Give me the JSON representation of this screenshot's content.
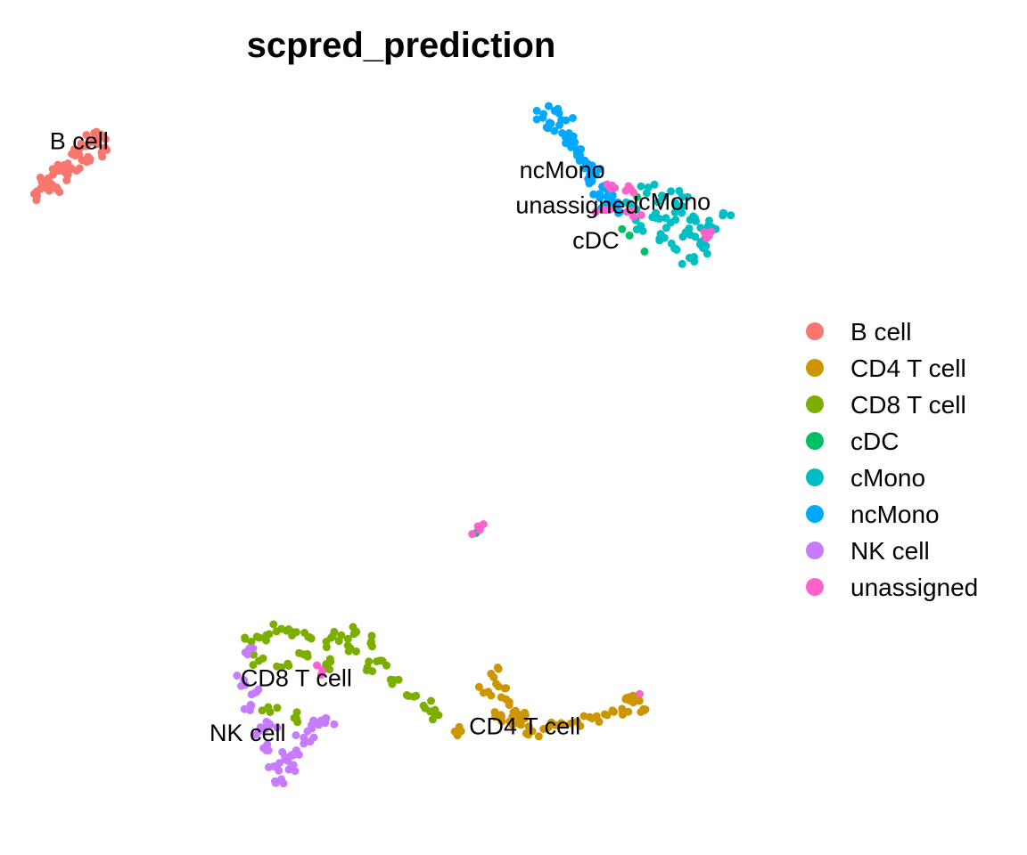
{
  "chart_data": {
    "type": "scatter",
    "title": "scpred_prediction",
    "axes_visible": false,
    "grid": false,
    "legend_position": "right",
    "categories": [
      {
        "name": "B cell",
        "color": "#F8766D"
      },
      {
        "name": "CD4 T cell",
        "color": "#CD9600"
      },
      {
        "name": "CD8 T cell",
        "color": "#7CAE00"
      },
      {
        "name": "cDC",
        "color": "#00BE67"
      },
      {
        "name": "cMono",
        "color": "#00BFC4"
      },
      {
        "name": "ncMono",
        "color": "#00A9FF"
      },
      {
        "name": "NK cell",
        "color": "#C77CFF"
      },
      {
        "name": "unassigned",
        "color": "#FF61CC"
      }
    ],
    "cluster_labels": [
      {
        "text": "B cell",
        "x": -8.6,
        "y": 10.4
      },
      {
        "text": "ncMono",
        "x": 4.3,
        "y": 9.5
      },
      {
        "text": "unassigned",
        "x": 4.7,
        "y": 8.4
      },
      {
        "text": "cMono",
        "x": 7.3,
        "y": 8.5
      },
      {
        "text": "cDC",
        "x": 5.2,
        "y": 7.3
      },
      {
        "text": "CD8 T cell",
        "x": -2.8,
        "y": -6.4
      },
      {
        "text": "NK cell",
        "x": -4.1,
        "y": -8.1
      },
      {
        "text": "CD4 T cell",
        "x": 3.3,
        "y": -7.9
      }
    ],
    "xlim": [
      -10,
      10
    ],
    "ylim": [
      -10,
      12
    ],
    "series": [
      {
        "name": "B cell",
        "points": [
          [
            -9.8,
            9.0
          ],
          [
            -9.5,
            9.3
          ],
          [
            -9.3,
            9.6
          ],
          [
            -9.0,
            9.9
          ],
          [
            -8.7,
            10.2
          ],
          [
            -8.4,
            10.5
          ],
          [
            -8.1,
            10.7
          ],
          [
            -8.0,
            10.3
          ],
          [
            -8.4,
            10.0
          ],
          [
            -8.9,
            9.6
          ],
          [
            -9.4,
            9.1
          ],
          [
            -9.6,
            9.4
          ],
          [
            -9.1,
            9.8
          ],
          [
            -8.6,
            10.4
          ],
          [
            -8.2,
            10.9
          ],
          [
            -8.8,
            9.8
          ],
          [
            -9.2,
            9.2
          ]
        ]
      },
      {
        "name": "ncMono",
        "points": [
          [
            3.8,
            11.5
          ],
          [
            4.0,
            11.2
          ],
          [
            4.3,
            10.9
          ],
          [
            4.5,
            10.6
          ],
          [
            4.7,
            10.2
          ],
          [
            4.9,
            9.8
          ],
          [
            5.1,
            9.4
          ],
          [
            5.3,
            9.0
          ],
          [
            5.5,
            8.7
          ],
          [
            5.8,
            8.4
          ],
          [
            4.1,
            11.6
          ],
          [
            4.4,
            11.3
          ],
          [
            4.6,
            10.8
          ],
          [
            4.8,
            10.4
          ],
          [
            5.0,
            9.9
          ],
          [
            5.2,
            9.6
          ],
          [
            5.4,
            9.2
          ],
          [
            5.6,
            8.9
          ]
        ]
      },
      {
        "name": "cMono",
        "points": [
          [
            6.6,
            9.2
          ],
          [
            7.0,
            8.9
          ],
          [
            7.4,
            8.6
          ],
          [
            7.8,
            8.3
          ],
          [
            8.2,
            8.0
          ],
          [
            6.8,
            8.4
          ],
          [
            7.2,
            8.1
          ],
          [
            7.6,
            7.8
          ],
          [
            8.0,
            7.5
          ],
          [
            8.4,
            7.9
          ],
          [
            6.4,
            8.0
          ],
          [
            6.9,
            7.6
          ],
          [
            7.3,
            7.3
          ],
          [
            7.7,
            7.0
          ],
          [
            8.1,
            7.3
          ],
          [
            8.6,
            8.4
          ],
          [
            6.2,
            8.6
          ],
          [
            7.5,
            8.9
          ]
        ]
      },
      {
        "name": "cDC",
        "points": [
          [
            5.9,
            7.9
          ],
          [
            6.1,
            7.7
          ],
          [
            6.3,
            8.9
          ],
          [
            6.5,
            7.2
          ],
          [
            2.0,
            -1.6
          ]
        ]
      },
      {
        "name": "unassigned",
        "points": [
          [
            5.5,
            9.3
          ],
          [
            6.0,
            9.1
          ],
          [
            5.4,
            8.5
          ],
          [
            6.2,
            8.3
          ],
          [
            8.1,
            7.8
          ],
          [
            2.1,
            -1.5
          ],
          [
            -2.1,
            -5.9
          ],
          [
            6.3,
            -6.8
          ]
        ]
      },
      {
        "name": "CD8 T cell",
        "points": [
          [
            -4.0,
            -5.0
          ],
          [
            -3.6,
            -4.8
          ],
          [
            -3.2,
            -4.6
          ],
          [
            -2.8,
            -4.7
          ],
          [
            -2.4,
            -4.9
          ],
          [
            -2.0,
            -5.0
          ],
          [
            -1.6,
            -4.8
          ],
          [
            -1.2,
            -4.7
          ],
          [
            -0.8,
            -5.0
          ],
          [
            -0.5,
            -5.6
          ],
          [
            -0.2,
            -6.2
          ],
          [
            0.2,
            -6.7
          ],
          [
            0.6,
            -7.0
          ],
          [
            1.0,
            -7.3
          ],
          [
            -3.8,
            -5.6
          ],
          [
            -3.2,
            -5.8
          ],
          [
            -2.6,
            -5.4
          ],
          [
            -2.0,
            -5.7
          ],
          [
            -1.4,
            -5.3
          ],
          [
            -0.9,
            -5.8
          ],
          [
            -3.5,
            -7.2
          ],
          [
            -2.8,
            -7.4
          ]
        ]
      },
      {
        "name": "NK cell",
        "points": [
          [
            -4.1,
            -5.4
          ],
          [
            -4.2,
            -6.2
          ],
          [
            -4.0,
            -7.0
          ],
          [
            -3.8,
            -7.8
          ],
          [
            -3.6,
            -8.4
          ],
          [
            -3.4,
            -8.9
          ],
          [
            -3.2,
            -9.3
          ],
          [
            -3.0,
            -9.0
          ],
          [
            -2.8,
            -8.4
          ],
          [
            -2.5,
            -7.8
          ],
          [
            -2.2,
            -7.6
          ],
          [
            -3.9,
            -6.6
          ],
          [
            -3.5,
            -7.6
          ],
          [
            -3.1,
            -8.6
          ],
          [
            -2.6,
            -8.0
          ],
          [
            -2.0,
            -7.4
          ]
        ]
      },
      {
        "name": "CD4 T cell",
        "points": [
          [
            2.4,
            -6.0
          ],
          [
            2.6,
            -6.4
          ],
          [
            2.8,
            -6.8
          ],
          [
            3.0,
            -7.2
          ],
          [
            3.2,
            -7.6
          ],
          [
            3.5,
            -7.8
          ],
          [
            3.9,
            -7.7
          ],
          [
            4.3,
            -7.6
          ],
          [
            4.7,
            -7.5
          ],
          [
            5.1,
            -7.4
          ],
          [
            5.5,
            -7.3
          ],
          [
            5.9,
            -7.1
          ],
          [
            6.2,
            -6.9
          ],
          [
            6.4,
            -7.2
          ],
          [
            6.0,
            -6.8
          ],
          [
            2.2,
            -6.6
          ],
          [
            2.5,
            -7.2
          ],
          [
            2.9,
            -7.5
          ],
          [
            3.3,
            -7.4
          ],
          [
            1.6,
            -7.8
          ]
        ]
      }
    ]
  }
}
